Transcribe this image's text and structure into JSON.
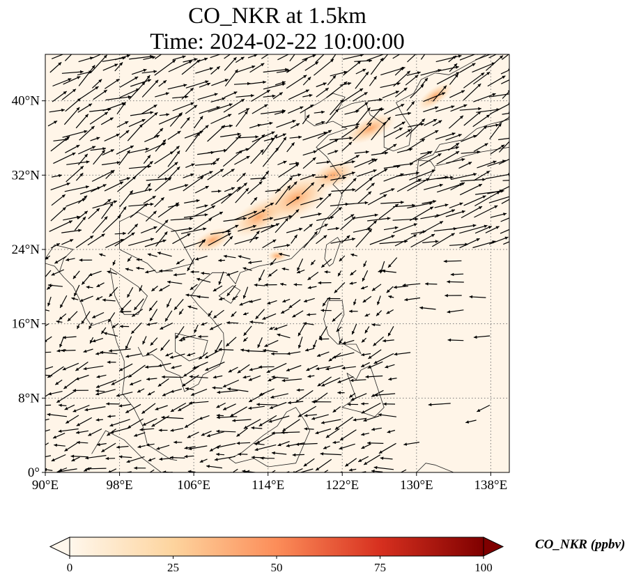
{
  "title": {
    "line1": "CO_NKR at 1.5km",
    "line2": "Time: 2024-02-22 10:00:00"
  },
  "map": {
    "lon_range": [
      90,
      140
    ],
    "lat_range": [
      0,
      45
    ],
    "x_ticks": [
      {
        "lon": 90,
        "label": "90°E"
      },
      {
        "lon": 98,
        "label": "98°E"
      },
      {
        "lon": 106,
        "label": "106°E"
      },
      {
        "lon": 114,
        "label": "114°E"
      },
      {
        "lon": 122,
        "label": "122°E"
      },
      {
        "lon": 130,
        "label": "130°E"
      },
      {
        "lon": 138,
        "label": "138°E"
      }
    ],
    "y_ticks": [
      {
        "lat": 0,
        "label": "0°"
      },
      {
        "lat": 8,
        "label": "8°N"
      },
      {
        "lat": 16,
        "label": "16°N"
      },
      {
        "lat": 24,
        "label": "24°N"
      },
      {
        "lat": 32,
        "label": "32°N"
      },
      {
        "lat": 40,
        "label": "40°N"
      }
    ],
    "background_color": "#fff5e8",
    "gridlines": "dotted",
    "plume_color": "#fdb97a"
  },
  "colorbar": {
    "label": "CO_NKR (ppbv)",
    "range": [
      0,
      100
    ],
    "ticks": [
      "0",
      "25",
      "50",
      "75",
      "100"
    ],
    "colormap": [
      "#fff7ec",
      "#fdd49e",
      "#fc8d59",
      "#d7301f",
      "#7f0000"
    ],
    "extend": "both"
  }
}
